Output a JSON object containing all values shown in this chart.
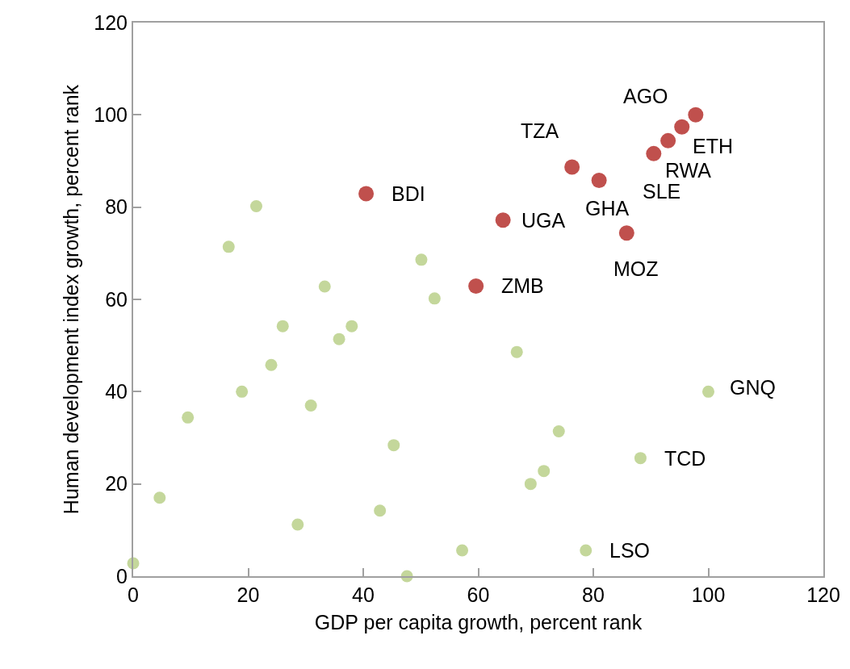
{
  "chart_data": {
    "type": "scatter",
    "xlabel": "GDP per capita growth, percent rank",
    "ylabel": "Human development index growth, percent rank",
    "xlim": [
      0,
      120
    ],
    "xticks": [
      0,
      20,
      40,
      60,
      80,
      100,
      120
    ],
    "ylim": [
      0,
      120
    ],
    "yticks": [
      0,
      20,
      40,
      60,
      80,
      100,
      120
    ],
    "marker": "circle",
    "series": [
      {
        "color": "#c4d79b",
        "x": [
          0,
          4.6,
          9.5,
          16.6,
          21.4,
          18.9,
          24,
          26,
          28.6,
          33.3,
          35.8,
          38,
          30.9,
          42.9,
          45.3,
          47.6,
          57.2,
          50.1,
          52.4,
          66.7,
          74,
          71.4,
          69.1,
          88.2,
          100,
          78.7
        ],
        "values": [
          2.8,
          17,
          34.4,
          71.4,
          80.2,
          40,
          45.8,
          54.2,
          11.2,
          62.8,
          51.4,
          54.2,
          37,
          14.2,
          28.4,
          0,
          5.6,
          68.6,
          60.2,
          48.6,
          31.4,
          22.8,
          20,
          25.6,
          40,
          5.6
        ]
      },
      {
        "color": "#c0504d",
        "x": [
          40.5,
          59.6,
          64.3,
          76.3,
          81,
          85.8,
          90.5,
          93,
          95.4,
          97.8
        ],
        "values": [
          82.9,
          62.9,
          77.2,
          88.7,
          85.8,
          74.4,
          91.6,
          94.4,
          97.4,
          100
        ]
      }
    ],
    "annotations": [
      {
        "text": "BDI",
        "x": 40.5,
        "y": 82.9
      },
      {
        "text": "ZMB",
        "x": 59.6,
        "y": 62.9
      },
      {
        "text": "UGA",
        "x": 64.3,
        "y": 77.2
      },
      {
        "text": "TZA",
        "x": 76.3,
        "y": 88.7
      },
      {
        "text": "GHA",
        "x": 81,
        "y": 85.8
      },
      {
        "text": "MOZ",
        "x": 85.8,
        "y": 74.4
      },
      {
        "text": "SLE",
        "x": 90.5,
        "y": 91.6
      },
      {
        "text": "RWA",
        "x": 93,
        "y": 94.4
      },
      {
        "text": "ETH",
        "x": 95.4,
        "y": 97.4
      },
      {
        "text": "AGO",
        "x": 97.8,
        "y": 100
      },
      {
        "text": "GNQ",
        "x": 100,
        "y": 40
      },
      {
        "text": "TCD",
        "x": 88.2,
        "y": 25.6
      },
      {
        "text": "LSO",
        "x": 78.7,
        "y": 5.6
      }
    ]
  }
}
